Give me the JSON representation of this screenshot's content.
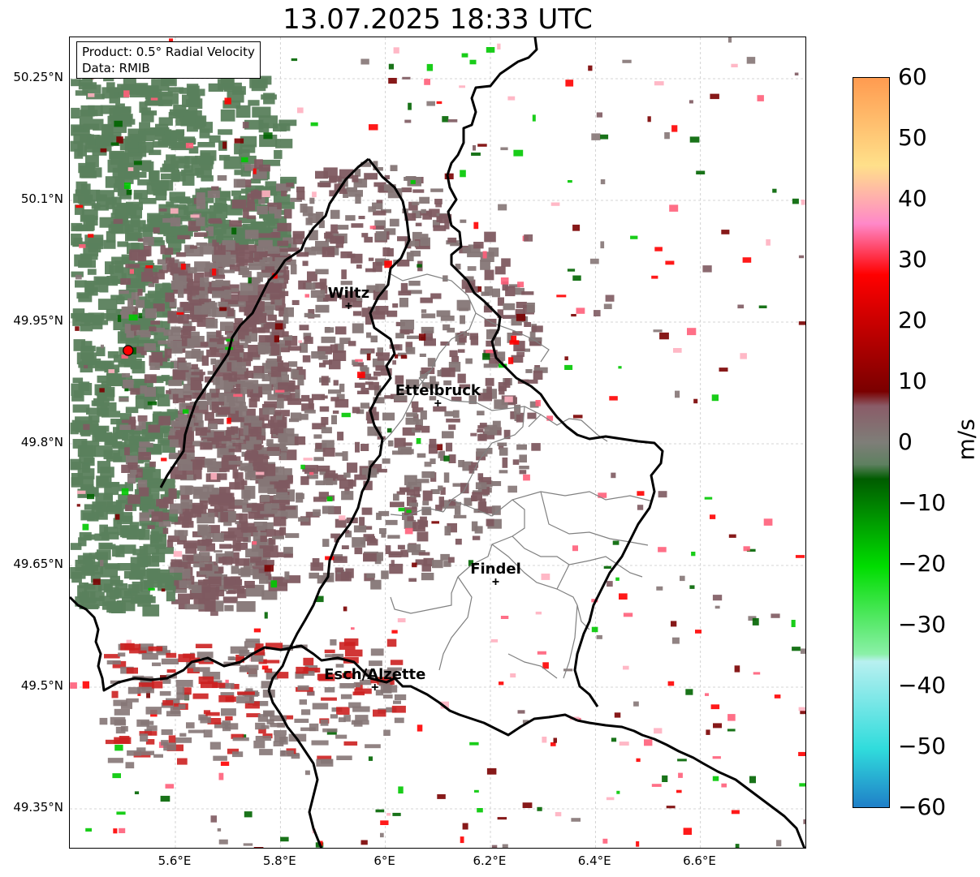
{
  "title": "13.07.2025 18:33 UTC",
  "info_box": {
    "product": "Product: 0.5° Radial Velocity",
    "data_source": "Data: RMIB"
  },
  "axes": {
    "lat_labels": [
      "50.25°N",
      "50.1°N",
      "49.95°N",
      "49.8°N",
      "49.65°N",
      "49.5°N",
      "49.35°N"
    ],
    "lon_labels": [
      "5.6°E",
      "5.8°E",
      "6°E",
      "6.2°E",
      "6.4°E",
      "6.6°E"
    ]
  },
  "cities": [
    {
      "name": "Wiltz",
      "lon": 5.93,
      "lat": 49.97
    },
    {
      "name": "Ettelbruck",
      "lon": 6.1,
      "lat": 49.85
    },
    {
      "name": "Findel",
      "lon": 6.21,
      "lat": 49.63
    },
    {
      "name": "Esch/Alzette",
      "lon": 5.98,
      "lat": 49.5
    }
  ],
  "radar_site": {
    "lon": 5.51,
    "lat": 49.915
  },
  "colorbar": {
    "unit": "m/s",
    "ticks": [
      "60",
      "50",
      "40",
      "30",
      "20",
      "10",
      "0",
      "−10",
      "−20",
      "−30",
      "−40",
      "−50",
      "−60"
    ],
    "range": [
      -60,
      60
    ],
    "colors": {
      "max": "#ff9b50",
      "high": "#ffe08a",
      "pink": "#ff88c8",
      "red": "#ff0000",
      "dark_red": "#7a0000",
      "mauve": "#8a5c68",
      "zero": "#7e7e78",
      "grey_green": "#5e8060",
      "dark_green": "#005c00",
      "green": "#00dd00",
      "light_green": "#8bf0a8",
      "pale_cyan": "#b8f0f0",
      "cyan": "#30dcdc",
      "min": "#1f7fc8"
    }
  },
  "colors": {
    "velocity_green": "#5a7f5c",
    "velocity_mauve": "#7e5a60",
    "velocity_grey": "#857676",
    "border": "#000000",
    "canton_lines": "#808080",
    "radar_dot": "#ff0000"
  }
}
